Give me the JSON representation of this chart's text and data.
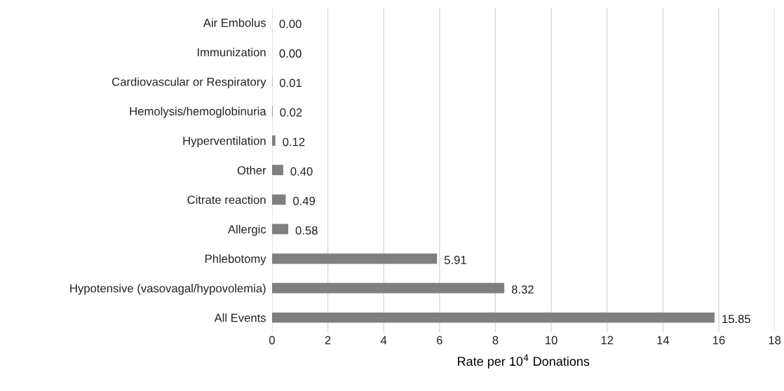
{
  "chart_data": {
    "type": "bar",
    "orientation": "horizontal",
    "categories": [
      "Air Embolus",
      "Immunization",
      "Cardiovascular or Respiratory",
      "Hemolysis/hemoglobinuria",
      "Hyperventilation",
      "Other",
      "Citrate reaction",
      "Allergic",
      "Phlebotomy",
      "Hypotensive (vasovagal/hypovolemia)",
      "All Events"
    ],
    "values": [
      0.0,
      0.0,
      0.01,
      0.02,
      0.12,
      0.4,
      0.49,
      0.58,
      5.91,
      8.32,
      15.85
    ],
    "value_labels": [
      "0.00",
      "0.00",
      "0.01",
      "0.02",
      "0.12",
      "0.40",
      "0.49",
      "0.58",
      "5.91",
      "8.32",
      "15.85"
    ],
    "color": "#7f7f7f",
    "xlabel": "Rate per 10$^{4}$ Donations",
    "xlim": [
      0,
      18
    ],
    "xticks": [
      0,
      2,
      4,
      6,
      8,
      10,
      12,
      14,
      16,
      18
    ],
    "grid": "x",
    "legend": false
  }
}
